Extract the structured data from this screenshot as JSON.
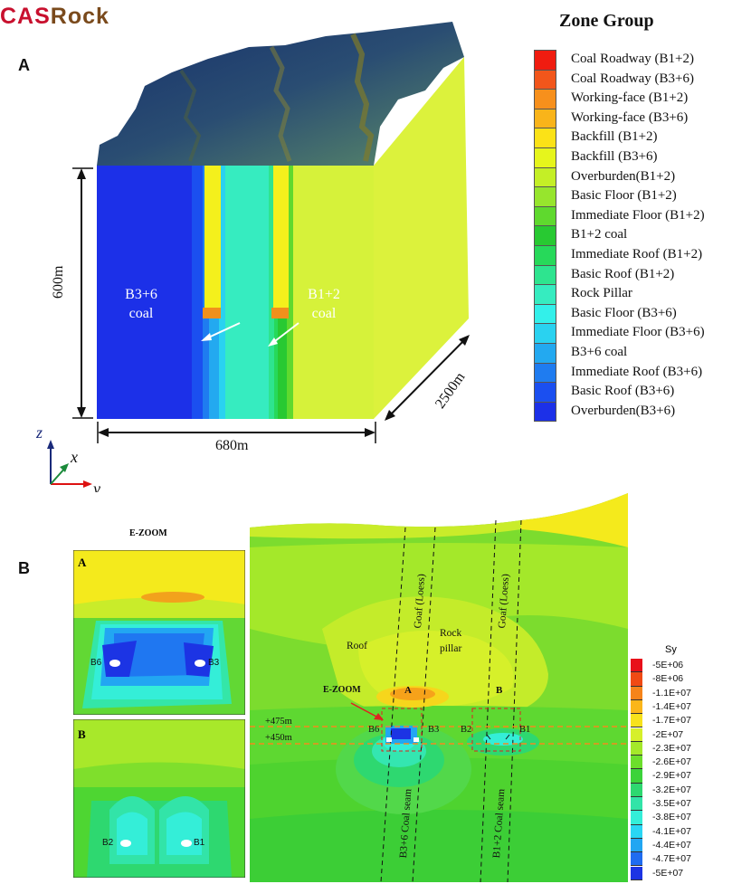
{
  "logo": {
    "part1": "CAS",
    "part2": "Rock"
  },
  "panel_a": {
    "letter": "A",
    "height_label": "600m",
    "width_label": "680m",
    "depth_label": "2500m",
    "coal_b36": [
      "B3+6",
      "coal"
    ],
    "coal_b12": [
      "B1+2",
      "coal"
    ],
    "axes": {
      "z": "z",
      "x": "x",
      "y": "y"
    }
  },
  "legend": {
    "title": "Zone Group",
    "items": [
      {
        "label": "Coal Roadway (B1+2)",
        "color": "#f01c10"
      },
      {
        "label": "Coal Roadway (B3+6)",
        "color": "#f2561b"
      },
      {
        "label": "Working-face  (B1+2)",
        "color": "#f7901c"
      },
      {
        "label": "Working-face  (B3+6)",
        "color": "#f9b41a"
      },
      {
        "label": "Backfill  (B1+2)",
        "color": "#fbe217"
      },
      {
        "label": "Backfill  (B3+6)",
        "color": "#e6f51c"
      },
      {
        "label": "Overburden(B1+2)",
        "color": "#c4ef26"
      },
      {
        "label": "Basic Floor  (B1+2)",
        "color": "#97e52d"
      },
      {
        "label": "Immediate Floor  (B1+2)",
        "color": "#5fd92e"
      },
      {
        "label": "B1+2 coal",
        "color": "#28c932"
      },
      {
        "label": "Immediate Roof  (B1+2)",
        "color": "#27d95a"
      },
      {
        "label": "Basic Roof  (B1+2)",
        "color": "#2ee48f"
      },
      {
        "label": "Rock Pillar",
        "color": "#36ecc0"
      },
      {
        "label": "Basic Floor  (B3+6)",
        "color": "#33f0ea"
      },
      {
        "label": "Immediate Floor  (B3+6)",
        "color": "#2ad2f0"
      },
      {
        "label": "B3+6 coal",
        "color": "#23a9f0"
      },
      {
        "label": "Immediate Roof  (B3+6)",
        "color": "#1f7cf0"
      },
      {
        "label": "Basic Roof  (B3+6)",
        "color": "#1b4ff0"
      },
      {
        "label": "Overburden(B3+6)",
        "color": "#1c30e8"
      }
    ]
  },
  "panel_b": {
    "letter": "B",
    "ezoom_title": "E-ZOOM",
    "zoom_a": {
      "label": "A",
      "left": "B6",
      "right": "B3"
    },
    "zoom_b": {
      "label": "B",
      "left": "B2",
      "right": "B1"
    },
    "main": {
      "roof": "Roof",
      "rock_pillar": [
        "Rock",
        "pillar"
      ],
      "goaf1": "Goaf (Loess)",
      "goaf2": "Goaf (Loess)",
      "box_a": "A",
      "box_b": "B",
      "ezoom": "E-ZOOM",
      "level_475": "+475m",
      "level_450": "+450m",
      "b6": "B6",
      "b3": "B3",
      "b2": "B2",
      "b1": "B1",
      "seam1": "B3+6 Coal seam",
      "seam2": "B1+2 Coal seam"
    },
    "sy_legend": {
      "title": "Sy",
      "items": [
        {
          "label": "-5E+06",
          "color": "#e8101a"
        },
        {
          "label": "-8E+06",
          "color": "#f04a14"
        },
        {
          "label": "-1.1E+07",
          "color": "#f6841a"
        },
        {
          "label": "-1.4E+07",
          "color": "#fbb61a"
        },
        {
          "label": "-1.7E+07",
          "color": "#f7e21c"
        },
        {
          "label": "-2E+07",
          "color": "#d6f02a"
        },
        {
          "label": "-2.3E+07",
          "color": "#a4e82a"
        },
        {
          "label": "-2.6E+07",
          "color": "#6cde2c"
        },
        {
          "label": "-2.9E+07",
          "color": "#3cd33a"
        },
        {
          "label": "-3.2E+07",
          "color": "#2ed870"
        },
        {
          "label": "-3.5E+07",
          "color": "#32e4a8"
        },
        {
          "label": "-3.8E+07",
          "color": "#34eed8"
        },
        {
          "label": "-4.1E+07",
          "color": "#2ad6f4"
        },
        {
          "label": "-4.4E+07",
          "color": "#22a6f2"
        },
        {
          "label": "-4.7E+07",
          "color": "#1f6cf0"
        },
        {
          "label": "-5E+07",
          "color": "#1c34e4"
        }
      ]
    }
  }
}
